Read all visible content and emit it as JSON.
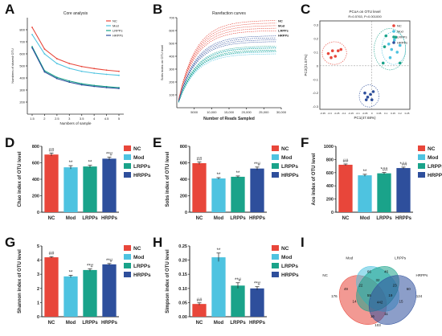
{
  "colors": {
    "NC": "#e8463a",
    "Mod": "#4ec3e0",
    "LRPPs": "#1aa38a",
    "HRPPs": "#2e4f9c"
  },
  "panels": [
    "A",
    "B",
    "C",
    "D",
    "E",
    "F",
    "G",
    "H",
    "I"
  ],
  "chart_data": [
    {
      "id": "A",
      "type": "line",
      "title": "Core analysis",
      "xlabel": "Numbers of sample",
      "ylabel": "Numbers of shared OTU",
      "x": [
        1,
        2,
        3,
        4,
        5,
        6,
        7,
        8
      ],
      "xticks": [
        "1.5",
        "2",
        "2.5",
        "3",
        "3.5",
        "4",
        "4.5",
        "5"
      ],
      "yticks": [
        "200",
        "300",
        "400",
        "500",
        "600",
        "700",
        "800"
      ],
      "ylim": [
        100,
        900
      ],
      "legend_position": "top-right",
      "series": [
        {
          "name": "NC",
          "values": [
            820,
            640,
            560,
            520,
            495,
            478,
            465,
            455
          ]
        },
        {
          "name": "Mod",
          "values": [
            760,
            600,
            520,
            480,
            455,
            440,
            430,
            422
          ]
        },
        {
          "name": "LRPPs",
          "values": [
            660,
            460,
            405,
            375,
            352,
            338,
            328,
            320
          ]
        },
        {
          "name": "HRPPs",
          "values": [
            650,
            450,
            395,
            365,
            343,
            330,
            320,
            313
          ]
        }
      ]
    },
    {
      "id": "B",
      "type": "line",
      "title": "Rarefaction curves",
      "xlabel": "Number of Reads Sampled",
      "ylabel": "Sobs index on OTU level",
      "xticks": [
        "5000",
        "10,000",
        "15,000",
        "20,000",
        "25,000",
        "30,000"
      ],
      "yticks": [
        "100",
        "200",
        "300",
        "400",
        "500",
        "600",
        "700"
      ],
      "xlim": [
        0,
        30000
      ],
      "ylim": [
        0,
        700
      ],
      "legend_position": "top-right",
      "series": [
        {
          "name": "NC",
          "asymptotes": [
            680,
            660,
            640,
            620,
            600
          ]
        },
        {
          "name": "Mod",
          "asymptotes": [
            470,
            450,
            435,
            420
          ]
        },
        {
          "name": "LRPPs",
          "asymptotes": [
            480,
            465,
            450,
            440
          ]
        },
        {
          "name": "HRPPs",
          "asymptotes": [
            560,
            545,
            530,
            515
          ]
        }
      ]
    },
    {
      "id": "C",
      "type": "scatter",
      "title": "PCoA on OTU level",
      "subtitle": "R=0.5763, P=0.001000",
      "xlabel": "PC1(47.68%)",
      "ylabel": "PC2(21.57%)",
      "xticks": [
        "-0.35",
        "-0.3",
        "-0.25",
        "-0.2",
        "-0.15",
        "-0.1",
        "-0.05",
        "0",
        "0.05",
        "0.1",
        "0.15",
        "0.2",
        "0.25"
      ],
      "yticks": [
        "-0.3",
        "-0.2",
        "-0.1",
        "0",
        "0.1",
        "0.2",
        "0.3"
      ],
      "xlim": [
        -0.37,
        0.27
      ],
      "ylim": [
        -0.32,
        0.33
      ],
      "legend_position": "top-right",
      "series": [
        {
          "name": "NC",
          "points": [
            [
              -0.31,
              0.09
            ],
            [
              -0.28,
              0.11
            ],
            [
              -0.26,
              0.07
            ],
            [
              -0.24,
              0.11
            ],
            [
              -0.22,
              0.12
            ],
            [
              -0.29,
              0.06
            ]
          ]
        },
        {
          "name": "Mod",
          "points": [
            [
              0.12,
              0.16
            ],
            [
              0.14,
              0.12
            ],
            [
              0.16,
              0.19
            ],
            [
              0.18,
              0.1
            ],
            [
              0.2,
              0.15
            ],
            [
              0.13,
              0.06
            ]
          ]
        },
        {
          "name": "LRPPs",
          "points": [
            [
              0.08,
              0.02
            ],
            [
              0.1,
              0.22
            ],
            [
              0.2,
              0.02
            ],
            [
              0.17,
              0.21
            ],
            [
              0.09,
              0.14
            ]
          ]
        },
        {
          "name": "HRPPs",
          "points": [
            [
              -0.05,
              -0.2
            ],
            [
              -0.03,
              -0.23
            ],
            [
              -0.01,
              -0.21
            ],
            [
              0.0,
              -0.25
            ],
            [
              -0.04,
              -0.25
            ],
            [
              0.01,
              -0.19
            ]
          ]
        }
      ]
    },
    {
      "id": "D",
      "type": "bar",
      "ylabel": "Chao index of OTU level",
      "categories": [
        "NC",
        "Mod",
        "LRPPs",
        "HRPPs"
      ],
      "values": [
        700,
        545,
        555,
        650
      ],
      "errors": [
        18,
        20,
        15,
        18
      ],
      "sig": [
        "##",
        "**",
        "**",
        "**#"
      ],
      "yticks": [
        "0",
        "200",
        "400",
        "600",
        "800"
      ],
      "ylim": [
        0,
        800
      ],
      "legend_position": "top-right"
    },
    {
      "id": "E",
      "type": "bar",
      "ylabel": "Sobs index of OTU level",
      "categories": [
        "NC",
        "Mod",
        "LRPPs",
        "HRPPs"
      ],
      "values": [
        595,
        410,
        430,
        530
      ],
      "errors": [
        15,
        10,
        10,
        18
      ],
      "sig": [
        "##",
        "**",
        "**",
        "**#"
      ],
      "yticks": [
        "0",
        "200",
        "400",
        "600",
        "800"
      ],
      "ylim": [
        0,
        800
      ],
      "legend_position": "top-right"
    },
    {
      "id": "F",
      "type": "bar",
      "ylabel": "Ace index of OTU level",
      "categories": [
        "NC",
        "Mod",
        "LRPPs",
        "HRPPs"
      ],
      "values": [
        720,
        560,
        590,
        670
      ],
      "errors": [
        12,
        15,
        12,
        14
      ],
      "sig": [
        "##",
        "**",
        "*##",
        "*##"
      ],
      "yticks": [
        "0",
        "200",
        "400",
        "600",
        "800",
        "1000"
      ],
      "ylim": [
        0,
        1000
      ],
      "legend_position": "top-right"
    },
    {
      "id": "G",
      "type": "bar",
      "ylabel": "Shannon index of OTU level",
      "categories": [
        "NC",
        "Mod",
        "LRPPs",
        "HRPPs"
      ],
      "values": [
        4.2,
        2.85,
        3.3,
        3.7
      ],
      "errors": [
        0.05,
        0.08,
        0.08,
        0.06
      ],
      "sig": [
        "##",
        "**",
        "**#",
        "**#"
      ],
      "yticks": [
        "0",
        "1",
        "2",
        "3",
        "4",
        "5"
      ],
      "ylim": [
        0,
        5
      ],
      "legend_position": "top-right"
    },
    {
      "id": "H",
      "type": "bar",
      "ylabel": "Simpson index of OTU level",
      "categories": [
        "NC",
        "Mod",
        "LRPPs",
        "HRPPs"
      ],
      "values": [
        0.045,
        0.21,
        0.11,
        0.1
      ],
      "errors": [
        0.004,
        0.015,
        0.01,
        0.006
      ],
      "sig": [
        "##",
        "**",
        "**#",
        "**#"
      ],
      "yticks": [
        "0.00",
        "0.05",
        "0.10",
        "0.15",
        "0.20",
        "0.25"
      ],
      "ylim": [
        0,
        0.25
      ],
      "legend_position": "top-right"
    },
    {
      "id": "I",
      "type": "venn",
      "sets": [
        "NC",
        "Mod",
        "LRPPs",
        "HRPPs"
      ],
      "regions": [
        {
          "label": "176",
          "fx": 0.09,
          "fy": 0.55
        },
        {
          "label": "66",
          "fx": 0.42,
          "fy": 0.22
        },
        {
          "label": "46",
          "fx": 0.58,
          "fy": 0.22
        },
        {
          "label": "124",
          "fx": 0.89,
          "fy": 0.55
        },
        {
          "label": "49",
          "fx": 0.2,
          "fy": 0.45
        },
        {
          "label": "22",
          "fx": 0.34,
          "fy": 0.4
        },
        {
          "label": "32",
          "fx": 0.5,
          "fy": 0.33
        },
        {
          "label": "23",
          "fx": 0.66,
          "fy": 0.4
        },
        {
          "label": "60",
          "fx": 0.79,
          "fy": 0.45
        },
        {
          "label": "14",
          "fx": 0.28,
          "fy": 0.62
        },
        {
          "label": "55",
          "fx": 0.42,
          "fy": 0.54
        },
        {
          "label": "442",
          "fx": 0.52,
          "fy": 0.63
        },
        {
          "label": "19",
          "fx": 0.62,
          "fy": 0.54
        },
        {
          "label": "15",
          "fx": 0.72,
          "fy": 0.62
        },
        {
          "label": "16",
          "fx": 0.45,
          "fy": 0.82
        },
        {
          "label": "11",
          "fx": 0.58,
          "fy": 0.79
        },
        {
          "label": "103",
          "fx": 0.5,
          "fy": 0.94
        }
      ]
    }
  ]
}
